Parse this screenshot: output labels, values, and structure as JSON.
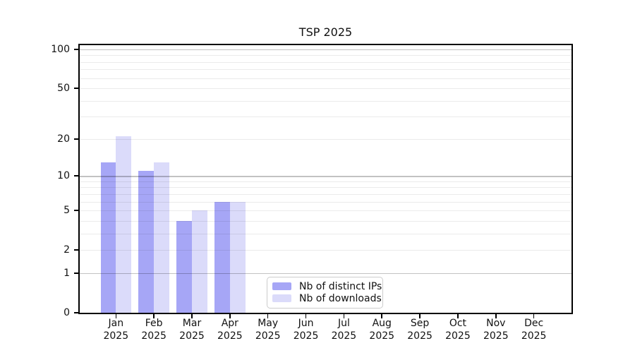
{
  "chart_data": {
    "type": "bar",
    "title": "TSP 2025",
    "categories": [
      "Jan 2025",
      "Feb 2025",
      "Mar 2025",
      "Apr 2025",
      "May 2025",
      "Jun 2025",
      "Jul 2025",
      "Aug 2025",
      "Sep 2025",
      "Oct 2025",
      "Nov 2025",
      "Dec 2025"
    ],
    "series": [
      {
        "name": "Nb of distinct IPs",
        "color": "#a6a6f6",
        "values": [
          13,
          11,
          4,
          6,
          0,
          0,
          0,
          0,
          0,
          0,
          0,
          0
        ]
      },
      {
        "name": "Nb of downloads",
        "color": "#dbdbfa",
        "values": [
          21,
          13,
          5,
          6,
          0,
          0,
          0,
          0,
          0,
          0,
          0,
          0
        ]
      }
    ],
    "yscale": "symlog",
    "ylim": [
      0,
      110
    ],
    "yticks": [
      0,
      1,
      2,
      5,
      10,
      20,
      50,
      100
    ],
    "major_gridlines": [
      1,
      10,
      100
    ],
    "minor_gridlines": [
      2,
      3,
      4,
      5,
      6,
      7,
      8,
      9,
      20,
      30,
      40,
      50,
      60,
      70,
      80,
      90
    ],
    "grid": true,
    "legend_position": "lower center",
    "xlabel": "",
    "ylabel": ""
  },
  "colors": {
    "major_grid": "rgba(0,0,0,0.24)",
    "minor_grid": "rgba(0,0,0,0.08)",
    "axis": "#000000",
    "background": "#ffffff"
  }
}
